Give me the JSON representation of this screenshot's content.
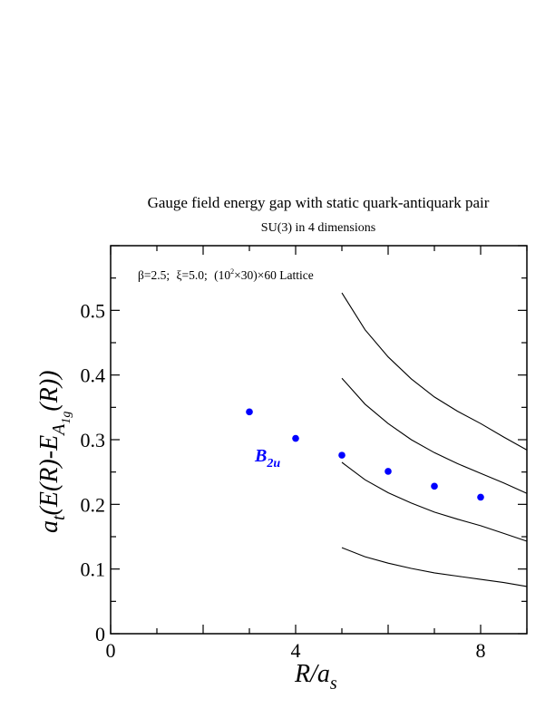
{
  "chart_data": {
    "type": "scatter",
    "title": "Gauge field energy gap with static quark-antiquark pair",
    "subtitle": "SU(3) in 4 dimensions",
    "annotation": {
      "beta": "β=2.5;",
      "xi": "ξ=5.0;",
      "lattice_open": "(10",
      "lattice_exp": "2",
      "lattice_close": "×30)×60 Lattice"
    },
    "xlabel": {
      "main": "R/a",
      "sub": "s"
    },
    "ylabel": {
      "a": "a",
      "t": "t",
      "mid": "(E(R)-E",
      "A": "A",
      "lower": "1g",
      "end": "(R))"
    },
    "xlim": [
      0,
      9
    ],
    "ylim": [
      0,
      0.6
    ],
    "xticks": [
      "0",
      "4",
      "8"
    ],
    "yticks": [
      "0",
      "0.1",
      "0.2",
      "0.3",
      "0.4",
      "0.5"
    ],
    "series_label": {
      "main": "B",
      "sub": "2u"
    },
    "series": [
      {
        "name": "B2u",
        "color": "#0000ff",
        "points": [
          {
            "x": 3,
            "y": 0.343
          },
          {
            "x": 4,
            "y": 0.302
          },
          {
            "x": 5,
            "y": 0.276
          },
          {
            "x": 6,
            "y": 0.251
          },
          {
            "x": 7,
            "y": 0.228
          },
          {
            "x": 8,
            "y": 0.211
          }
        ]
      }
    ],
    "curves": [
      {
        "color": "#000000",
        "points": [
          [
            5,
            0.133
          ],
          [
            5.5,
            0.119
          ],
          [
            6,
            0.109
          ],
          [
            6.5,
            0.101
          ],
          [
            7,
            0.094
          ],
          [
            7.5,
            0.089
          ],
          [
            8,
            0.084
          ],
          [
            8.5,
            0.079
          ],
          [
            9,
            0.073
          ]
        ]
      },
      {
        "color": "#000000",
        "points": [
          [
            5,
            0.265
          ],
          [
            5.5,
            0.238
          ],
          [
            6,
            0.218
          ],
          [
            6.5,
            0.202
          ],
          [
            7,
            0.188
          ],
          [
            7.5,
            0.177
          ],
          [
            8,
            0.167
          ],
          [
            8.5,
            0.155
          ],
          [
            9,
            0.143
          ]
        ]
      },
      {
        "color": "#000000",
        "points": [
          [
            5,
            0.395
          ],
          [
            5.5,
            0.355
          ],
          [
            6,
            0.325
          ],
          [
            6.5,
            0.3
          ],
          [
            7,
            0.28
          ],
          [
            7.5,
            0.263
          ],
          [
            8,
            0.248
          ],
          [
            8.5,
            0.233
          ],
          [
            9,
            0.217
          ]
        ]
      },
      {
        "color": "#000000",
        "points": [
          [
            5,
            0.527
          ],
          [
            5.5,
            0.47
          ],
          [
            6,
            0.428
          ],
          [
            6.5,
            0.394
          ],
          [
            7,
            0.366
          ],
          [
            7.5,
            0.344
          ],
          [
            8,
            0.325
          ],
          [
            8.5,
            0.304
          ],
          [
            9,
            0.284
          ]
        ]
      }
    ],
    "grid": false,
    "legend": "none"
  }
}
